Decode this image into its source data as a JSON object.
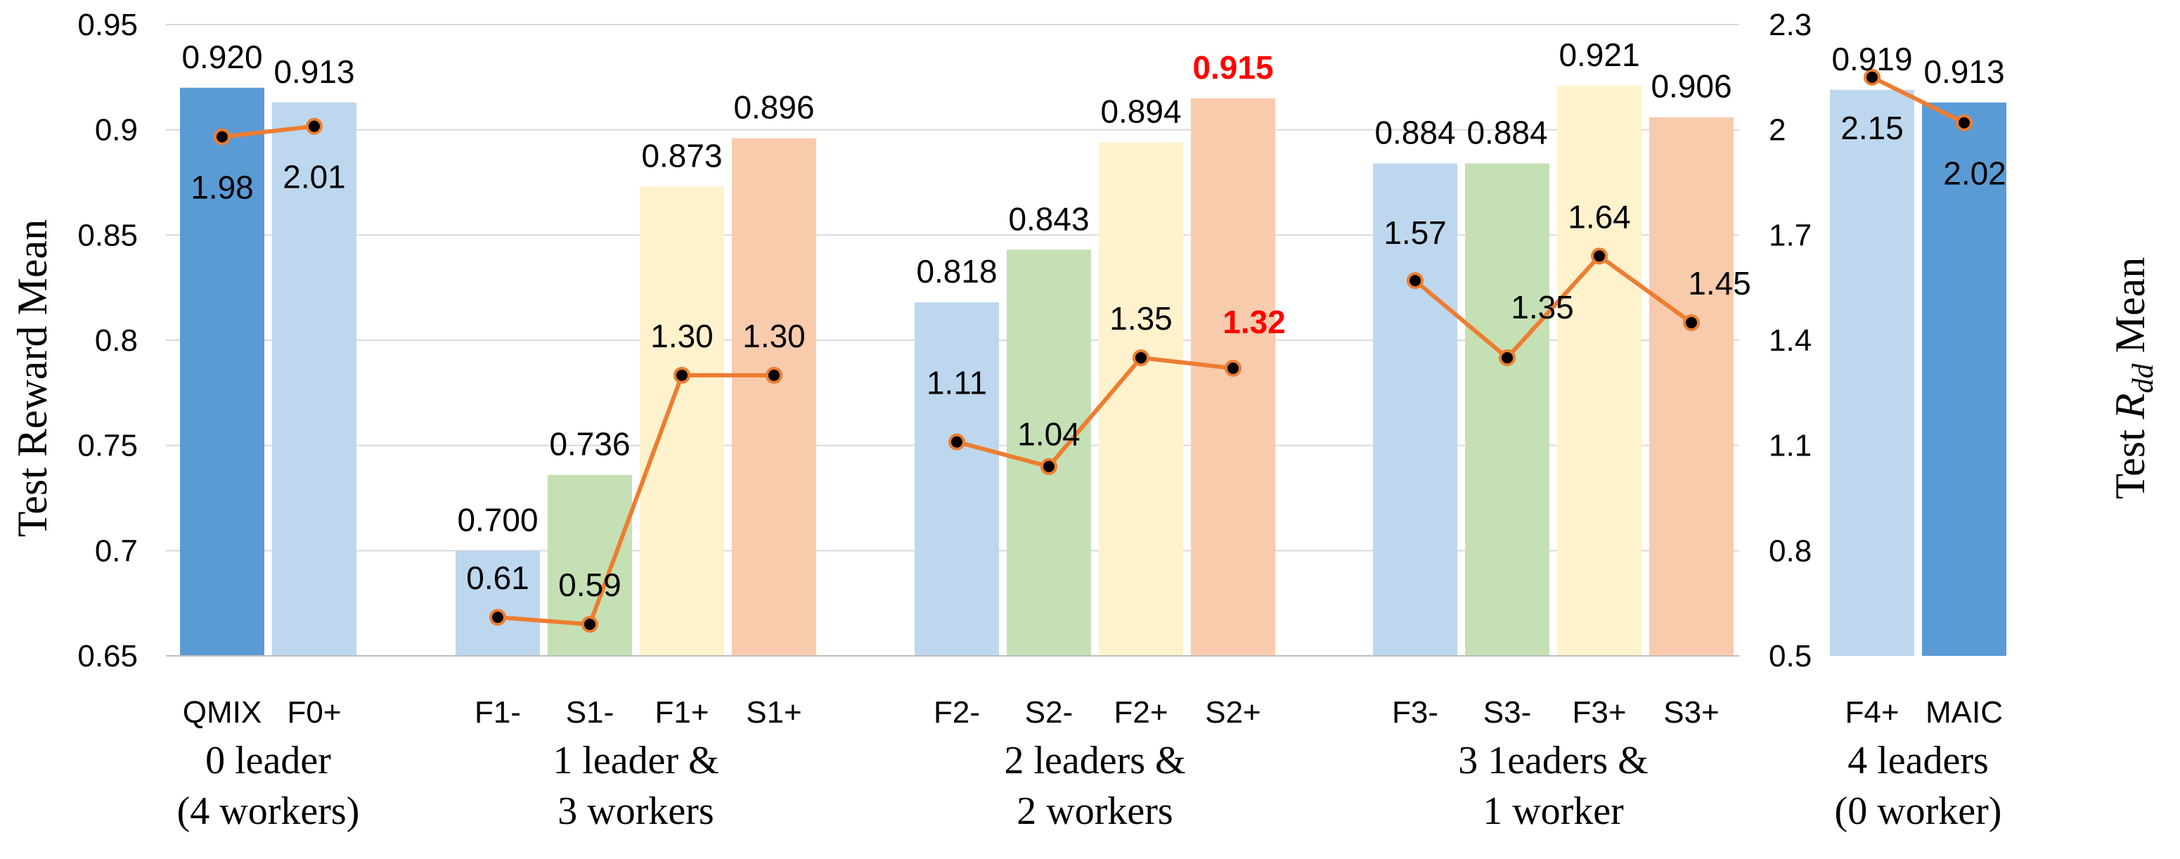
{
  "chart_data": {
    "type": "bar",
    "title": "",
    "ylabel": "Test Reward Mean",
    "y2label_prefix": "Test ",
    "y2label_symbol": "R",
    "y2label_sub": "dd",
    "y2label_suffix": " Mean",
    "ylim": [
      0.65,
      0.95
    ],
    "yticks": [
      "0.65",
      "0.7",
      "0.75",
      "0.8",
      "0.85",
      "0.9",
      "0.95"
    ],
    "y2lim": [
      0.5,
      2.3
    ],
    "y2ticks": [
      "0.5",
      "0.8",
      "1.1",
      "1.4",
      "1.7",
      "2",
      "2.3"
    ],
    "grid": true,
    "colors": {
      "dark_blue": "#5b9bd5",
      "light_blue": "#bdd7ee",
      "green": "#c5e0b4",
      "yellow": "#fff2cc",
      "peach": "#f8cbad",
      "line": "#ed7d31",
      "highlight": "#ff0000"
    },
    "groups": [
      {
        "label_lines": [
          "0 leader",
          "(4 workers)"
        ],
        "bars": [
          {
            "name": "QMIX",
            "reward": 0.92,
            "reward_label": "0.920",
            "rdd": 1.98,
            "rdd_label": "1.98",
            "color": "dark_blue"
          },
          {
            "name": "F0+",
            "reward": 0.913,
            "reward_label": "0.913",
            "rdd": 2.01,
            "rdd_label": "2.01",
            "color": "light_blue"
          }
        ]
      },
      {
        "label_lines": [
          "1 leader &",
          "3 workers"
        ],
        "bars": [
          {
            "name": "F1-",
            "reward": 0.7,
            "reward_label": "0.700",
            "rdd": 0.61,
            "rdd_label": "0.61",
            "color": "light_blue"
          },
          {
            "name": "S1-",
            "reward": 0.736,
            "reward_label": "0.736",
            "rdd": 0.59,
            "rdd_label": "0.59",
            "color": "green"
          },
          {
            "name": "F1+",
            "reward": 0.873,
            "reward_label": "0.873",
            "rdd": 1.3,
            "rdd_label": "1.30",
            "color": "yellow"
          },
          {
            "name": "S1+",
            "reward": 0.896,
            "reward_label": "0.896",
            "rdd": 1.3,
            "rdd_label": "1.30",
            "color": "peach"
          }
        ]
      },
      {
        "label_lines": [
          "2 leaders &",
          "2 workers"
        ],
        "bars": [
          {
            "name": "F2-",
            "reward": 0.818,
            "reward_label": "0.818",
            "rdd": 1.11,
            "rdd_label": "1.11",
            "color": "light_blue"
          },
          {
            "name": "S2-",
            "reward": 0.843,
            "reward_label": "0.843",
            "rdd": 1.04,
            "rdd_label": "1.04",
            "color": "green"
          },
          {
            "name": "F2+",
            "reward": 0.894,
            "reward_label": "0.894",
            "rdd": 1.35,
            "rdd_label": "1.35",
            "color": "yellow"
          },
          {
            "name": "S2+",
            "reward": 0.915,
            "reward_label": "0.915",
            "rdd": 1.32,
            "rdd_label": "1.32",
            "color": "peach",
            "highlight": true
          }
        ]
      },
      {
        "label_lines": [
          "3 1eaders &",
          "1 worker"
        ],
        "bars": [
          {
            "name": "F3-",
            "reward": 0.884,
            "reward_label": "0.884",
            "rdd": 1.57,
            "rdd_label": "1.57",
            "color": "light_blue"
          },
          {
            "name": "S3-",
            "reward": 0.884,
            "reward_label": "0.884",
            "rdd": 1.35,
            "rdd_label": "1.35",
            "color": "green"
          },
          {
            "name": "F3+",
            "reward": 0.921,
            "reward_label": "0.921",
            "rdd": 1.64,
            "rdd_label": "1.64",
            "color": "yellow"
          },
          {
            "name": "S3+",
            "reward": 0.906,
            "reward_label": "0.906",
            "rdd": 1.45,
            "rdd_label": "1.45",
            "color": "peach"
          }
        ]
      },
      {
        "label_lines": [
          "4 leaders",
          "(0 worker)"
        ],
        "bars": [
          {
            "name": "F4+",
            "reward": 0.919,
            "reward_label": "0.919",
            "rdd": 2.15,
            "rdd_label": "2.15",
            "color": "light_blue"
          },
          {
            "name": "MAIC",
            "reward": 0.913,
            "reward_label": "0.913",
            "rdd": 2.02,
            "rdd_label": "2.02",
            "color": "dark_blue"
          }
        ]
      }
    ]
  }
}
